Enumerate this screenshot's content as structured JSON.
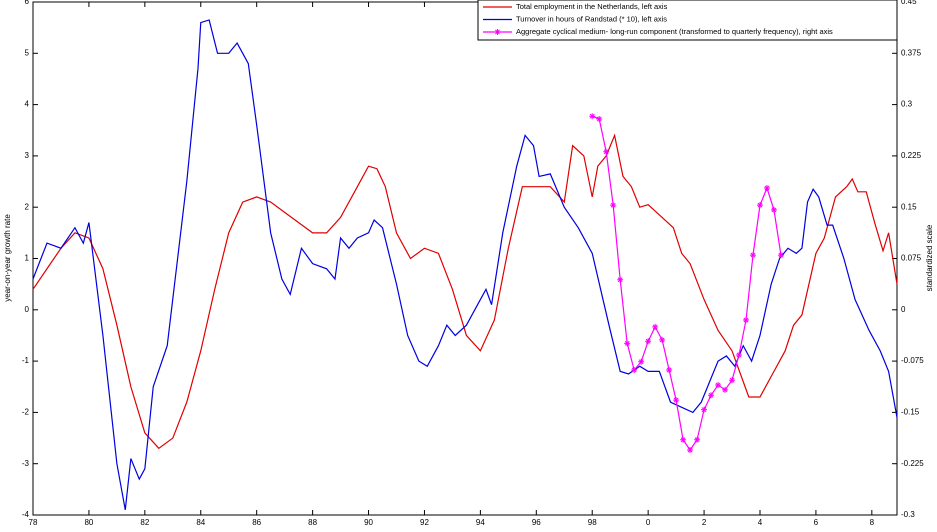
{
  "chart_data": {
    "type": "line",
    "ylabel": "year-on-year growth rate",
    "y2label": "standardized scale",
    "xlim": [
      78,
      108.9
    ],
    "ylim": [
      -4,
      6
    ],
    "y2lim": [
      -0.3,
      0.45
    ],
    "xticks": [
      78,
      80,
      82,
      84,
      86,
      88,
      90,
      92,
      94,
      96,
      98,
      {
        "value": 100,
        "label": "0"
      },
      {
        "value": 102,
        "label": "2"
      },
      {
        "value": 104,
        "label": "4"
      },
      {
        "value": 106,
        "label": "6"
      },
      {
        "value": 108,
        "label": "8"
      }
    ],
    "yticks": [
      -4,
      -3,
      -2,
      -1,
      0,
      1,
      2,
      3,
      4,
      5,
      6
    ],
    "y2ticks": [
      -0.3,
      -0.225,
      -0.15,
      -0.075,
      0,
      0.075,
      0.15,
      0.225,
      0.3,
      0.375,
      0.45
    ],
    "grid": false,
    "legend": "upper right",
    "series": [
      {
        "name": "Total employment in the Netherlands, left axis",
        "color": "#e00000",
        "x": [
          78,
          78.5,
          79,
          79.5,
          80,
          80.5,
          81,
          81.5,
          82,
          82.5,
          83,
          83.5,
          84,
          84.5,
          85,
          85.5,
          86,
          86.5,
          87,
          87.5,
          88,
          88.5,
          89,
          89.5,
          90,
          90.3,
          90.6,
          91,
          91.5,
          92,
          92.5,
          93,
          93.5,
          94,
          94.5,
          95,
          95.5,
          96,
          96.5,
          97,
          97.3,
          97.7,
          98,
          98.2,
          98.5,
          98.8,
          99.1,
          99.4,
          99.7,
          100,
          100.3,
          100.9,
          101.2,
          101.5,
          102,
          102.5,
          103,
          103.4,
          103.6,
          104,
          104.5,
          104.9,
          105.2,
          105.5,
          106,
          106.3,
          106.7,
          107.1,
          107.3,
          107.5,
          107.8,
          108.1,
          108.4,
          108.6,
          108.9
        ],
        "values": [
          0.4,
          0.8,
          1.2,
          1.5,
          1.4,
          0.8,
          -0.3,
          -1.5,
          -2.4,
          -2.7,
          -2.5,
          -1.8,
          -0.8,
          0.4,
          1.5,
          2.1,
          2.2,
          2.1,
          1.9,
          1.7,
          1.5,
          1.5,
          1.8,
          2.3,
          2.8,
          2.75,
          2.4,
          1.5,
          1.0,
          1.2,
          1.1,
          0.4,
          -0.5,
          -0.8,
          -0.2,
          1.2,
          2.4,
          2.4,
          2.4,
          2.1,
          3.2,
          3.0,
          2.2,
          2.8,
          3.0,
          3.4,
          2.6,
          2.4,
          2.0,
          2.05,
          1.9,
          1.6,
          1.1,
          0.9,
          0.2,
          -0.4,
          -0.8,
          -1.4,
          -1.7,
          -1.7,
          -1.2,
          -0.8,
          -0.3,
          -0.1,
          1.1,
          1.4,
          2.2,
          2.4,
          2.55,
          2.3,
          2.3,
          1.7,
          1.15,
          1.5,
          0.5
        ]
      },
      {
        "name": "Turnover in hours of Randstad (* 10), left axis",
        "color": "#0000e0",
        "x": [
          78,
          78.5,
          79,
          79.5,
          79.8,
          80,
          80.5,
          81,
          81.3,
          81.5,
          81.8,
          82,
          82.3,
          82.8,
          83.5,
          83.9,
          84,
          84.3,
          84.6,
          85,
          85.3,
          85.7,
          86,
          86.5,
          86.9,
          87.2,
          87.6,
          88,
          88.5,
          88.8,
          89,
          89.3,
          89.6,
          90,
          90.2,
          90.5,
          91,
          91.4,
          91.8,
          92.1,
          92.5,
          92.8,
          93.1,
          93.5,
          93.9,
          94.2,
          94.4,
          94.8,
          95.3,
          95.6,
          95.9,
          96.1,
          96.5,
          97,
          97.5,
          98,
          98.6,
          99,
          99.3,
          99.7,
          100,
          100.4,
          100.8,
          101.2,
          101.6,
          101.9,
          102.2,
          102.5,
          102.8,
          103.1,
          103.4,
          103.7,
          104,
          104.4,
          104.7,
          105,
          105.3,
          105.5,
          105.7,
          105.9,
          106.1,
          106.4,
          106.6,
          107,
          107.4,
          107.9,
          108.3,
          108.6,
          108.9
        ],
        "values": [
          0.6,
          1.3,
          1.2,
          1.6,
          1.3,
          1.7,
          -0.5,
          -3.0,
          -3.9,
          -2.9,
          -3.3,
          -3.1,
          -1.5,
          -0.7,
          2.5,
          4.7,
          5.6,
          5.65,
          5.0,
          5.0,
          5.2,
          4.8,
          3.6,
          1.5,
          0.6,
          0.3,
          1.2,
          0.9,
          0.8,
          0.6,
          1.4,
          1.2,
          1.4,
          1.5,
          1.75,
          1.6,
          0.5,
          -0.5,
          -1.0,
          -1.1,
          -0.7,
          -0.3,
          -0.5,
          -0.3,
          0.1,
          0.4,
          0.1,
          1.5,
          2.8,
          3.4,
          3.2,
          2.6,
          2.65,
          2.0,
          1.6,
          1.1,
          -0.3,
          -1.2,
          -1.25,
          -1.1,
          -1.2,
          -1.2,
          -1.8,
          -1.9,
          -2.0,
          -1.8,
          -1.4,
          -1.0,
          -0.9,
          -1.1,
          -0.7,
          -1.0,
          -0.5,
          0.5,
          1.0,
          1.2,
          1.1,
          1.2,
          2.1,
          2.35,
          2.2,
          1.65,
          1.65,
          1.0,
          0.2,
          -0.4,
          -0.8,
          -1.2,
          -2.1
        ]
      },
      {
        "name": "Aggregate cyclical medium- long-run component (transformed to quarterly frequency), right axis",
        "color": "#ff00ff",
        "axis": "y2",
        "marker": "*",
        "x": [
          98,
          98.25,
          98.5,
          98.75,
          99,
          99.25,
          99.5,
          99.75,
          100,
          100.25,
          100.5,
          100.75,
          101,
          101.25,
          101.5,
          101.75,
          102,
          102.25,
          102.5,
          102.75,
          103,
          103.25,
          103.5,
          103.75,
          104,
          104.25,
          104.5,
          104.75
        ],
        "values": [
          0.283,
          0.279,
          0.231,
          0.153,
          0.044,
          -0.049,
          -0.088,
          -0.076,
          -0.046,
          -0.025,
          -0.044,
          -0.088,
          -0.132,
          -0.19,
          -0.205,
          -0.19,
          -0.146,
          -0.125,
          -0.11,
          -0.117,
          -0.103,
          -0.066,
          -0.015,
          0.08,
          0.153,
          0.178,
          0.146,
          0.08
        ]
      }
    ]
  }
}
